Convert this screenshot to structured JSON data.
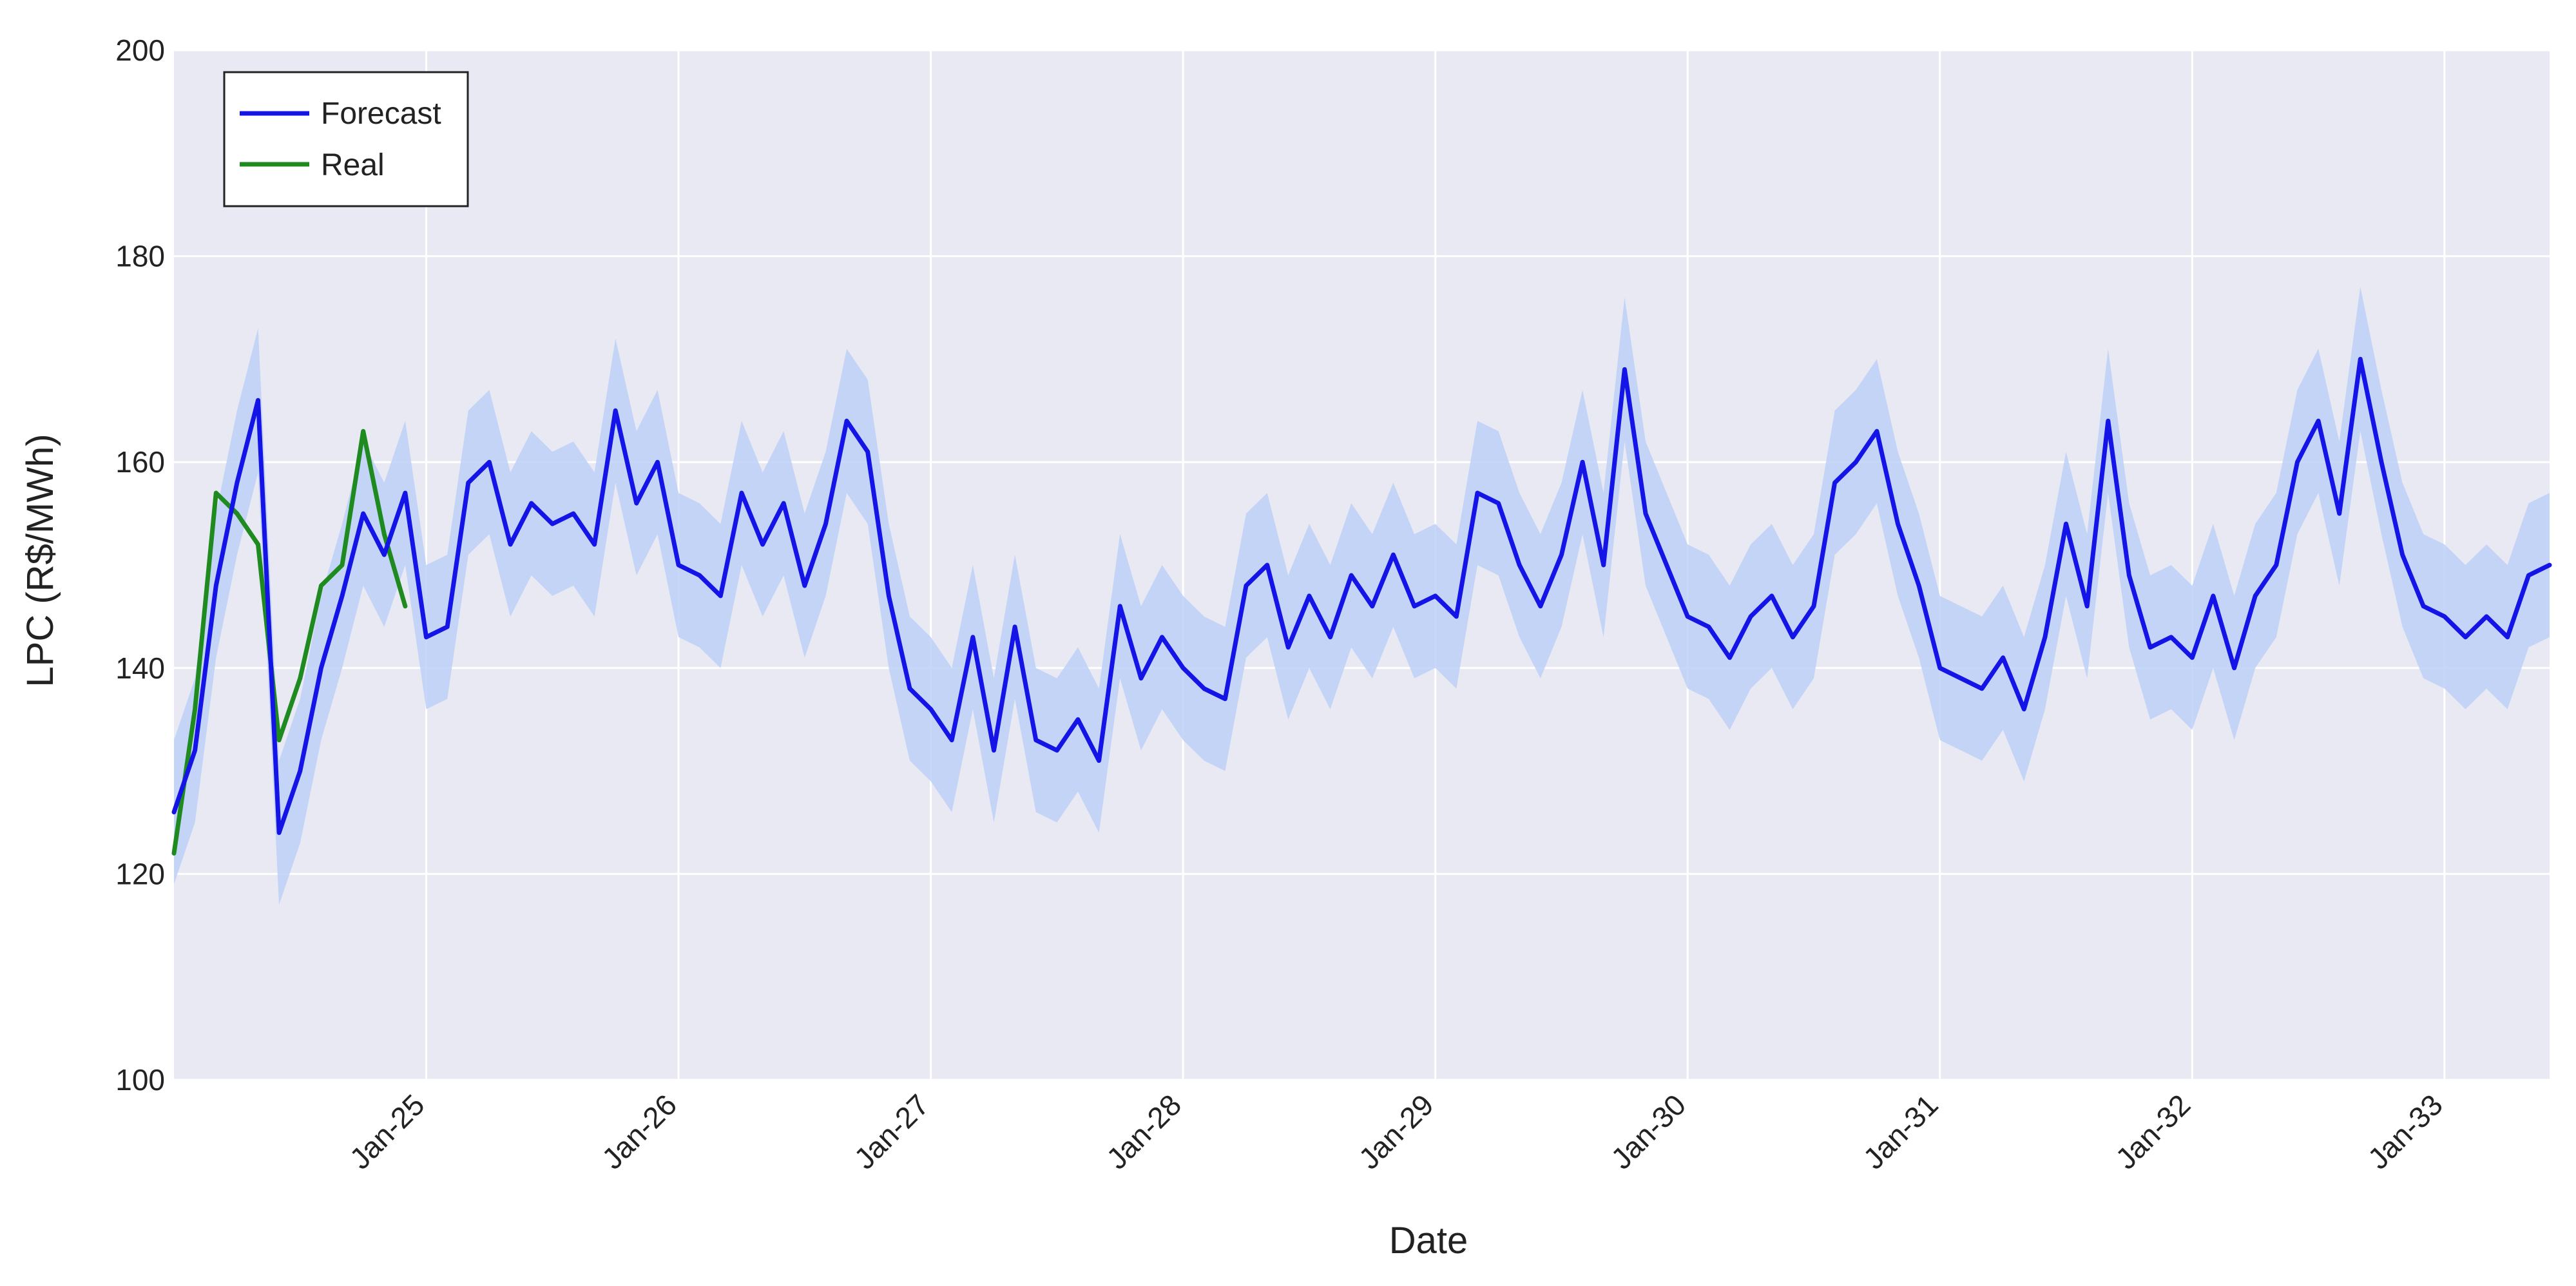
{
  "chart_data": {
    "type": "line",
    "title": "",
    "xlabel": "Date",
    "ylabel": "LPC (R$/MWh)",
    "ylim": [
      100,
      200
    ],
    "y_ticks": [
      100,
      120,
      140,
      160,
      180,
      200
    ],
    "x_range": [
      "2024-01",
      "2033-06"
    ],
    "x_ticks": [
      {
        "date": "2025-01",
        "label": "Jan-25"
      },
      {
        "date": "2026-01",
        "label": "Jan-26"
      },
      {
        "date": "2027-01",
        "label": "Jan-27"
      },
      {
        "date": "2028-01",
        "label": "Jan-28"
      },
      {
        "date": "2029-01",
        "label": "Jan-29"
      },
      {
        "date": "2030-01",
        "label": "Jan-30"
      },
      {
        "date": "2031-01",
        "label": "Jan-31"
      },
      {
        "date": "2032-01",
        "label": "Jan-32"
      },
      {
        "date": "2033-01",
        "label": "Jan-33"
      }
    ],
    "grid": true,
    "legend": {
      "position": "top-left",
      "entries": [
        {
          "name": "Forecast",
          "color": "#1414e6"
        },
        {
          "name": "Real",
          "color": "#1f8a1f"
        }
      ]
    },
    "colors": {
      "background": "#e8e9f2",
      "grid": "#ffffff",
      "band": "#bcd0f7"
    },
    "series": [
      {
        "name": "Forecast",
        "color": "#1414e6",
        "x": [
          "2024-01",
          "2024-02",
          "2024-03",
          "2024-04",
          "2024-05",
          "2024-06",
          "2024-07",
          "2024-08",
          "2024-09",
          "2024-10",
          "2024-11",
          "2024-12",
          "2025-01",
          "2025-02",
          "2025-03",
          "2025-04",
          "2025-05",
          "2025-06",
          "2025-07",
          "2025-08",
          "2025-09",
          "2025-10",
          "2025-11",
          "2025-12",
          "2026-01",
          "2026-02",
          "2026-03",
          "2026-04",
          "2026-05",
          "2026-06",
          "2026-07",
          "2026-08",
          "2026-09",
          "2026-10",
          "2026-11",
          "2026-12",
          "2027-01",
          "2027-02",
          "2027-03",
          "2027-04",
          "2027-05",
          "2027-06",
          "2027-07",
          "2027-08",
          "2027-09",
          "2027-10",
          "2027-11",
          "2027-12",
          "2028-01",
          "2028-02",
          "2028-03",
          "2028-04",
          "2028-05",
          "2028-06",
          "2028-07",
          "2028-08",
          "2028-09",
          "2028-10",
          "2028-11",
          "2028-12",
          "2029-01",
          "2029-02",
          "2029-03",
          "2029-04",
          "2029-05",
          "2029-06",
          "2029-07",
          "2029-08",
          "2029-09",
          "2029-10",
          "2029-11",
          "2029-12",
          "2030-01",
          "2030-02",
          "2030-03",
          "2030-04",
          "2030-05",
          "2030-06",
          "2030-07",
          "2030-08",
          "2030-09",
          "2030-10",
          "2030-11",
          "2030-12",
          "2031-01",
          "2031-02",
          "2031-03",
          "2031-04",
          "2031-05",
          "2031-06",
          "2031-07",
          "2031-08",
          "2031-09",
          "2031-10",
          "2031-11",
          "2031-12",
          "2032-01",
          "2032-02",
          "2032-03",
          "2032-04",
          "2032-05",
          "2032-06",
          "2032-07",
          "2032-08",
          "2032-09",
          "2032-10",
          "2032-11",
          "2032-12",
          "2033-01",
          "2033-02",
          "2033-03",
          "2033-04",
          "2033-05",
          "2033-06"
        ],
        "values": [
          126,
          132,
          148,
          158,
          166,
          124,
          130,
          140,
          147,
          155,
          151,
          157,
          143,
          144,
          158,
          160,
          152,
          156,
          154,
          155,
          152,
          165,
          156,
          160,
          150,
          149,
          147,
          157,
          152,
          156,
          148,
          154,
          164,
          161,
          147,
          138,
          136,
          133,
          143,
          132,
          144,
          133,
          132,
          135,
          131,
          146,
          139,
          143,
          140,
          138,
          137,
          148,
          150,
          142,
          147,
          143,
          149,
          146,
          151,
          146,
          147,
          145,
          157,
          156,
          150,
          146,
          151,
          160,
          150,
          169,
          155,
          150,
          145,
          144,
          141,
          145,
          147,
          143,
          146,
          158,
          160,
          163,
          154,
          148,
          140,
          139,
          138,
          141,
          136,
          143,
          154,
          146,
          164,
          149,
          142,
          143,
          141,
          147,
          140,
          147,
          150,
          160,
          164,
          155,
          170,
          160,
          151,
          146,
          145,
          143,
          145,
          143,
          149,
          150
        ]
      },
      {
        "name": "Real",
        "color": "#1f8a1f",
        "x": [
          "2024-01",
          "2024-02",
          "2024-03",
          "2024-04",
          "2024-05",
          "2024-06",
          "2024-07",
          "2024-08",
          "2024-09",
          "2024-10",
          "2024-11",
          "2024-12"
        ],
        "values": [
          122,
          136,
          157,
          155,
          152,
          133,
          139,
          148,
          150,
          163,
          153,
          146
        ]
      }
    ]
  }
}
